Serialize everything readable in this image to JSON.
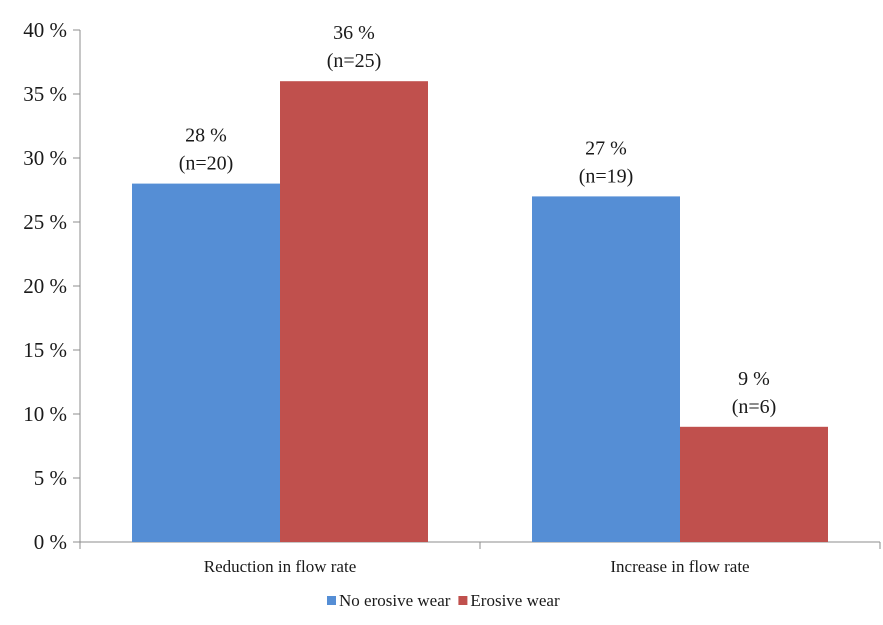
{
  "chart_data": {
    "type": "bar",
    "title": "",
    "xlabel": "",
    "ylabel": "",
    "categories": [
      "Reduction in flow rate",
      "Increase in flow rate"
    ],
    "series": [
      {
        "name": "No erosive wear",
        "color": "#558ed5",
        "values": [
          28,
          27
        ],
        "labels": [
          [
            "28 %",
            "(n=20)"
          ],
          [
            "27 %",
            "(n=19)"
          ]
        ]
      },
      {
        "name": "Erosive wear",
        "color": "#c0504d",
        "values": [
          36,
          9
        ],
        "labels": [
          [
            "36 %",
            "(n=25)"
          ],
          [
            "9 %",
            "(n=6)"
          ]
        ]
      }
    ],
    "ylim": [
      0,
      40
    ],
    "yticks": [
      0,
      5,
      10,
      15,
      20,
      25,
      30,
      35,
      40
    ],
    "ytick_labels": [
      "0 %",
      "5 %",
      "10 %",
      "15 %",
      "20 %",
      "25 %",
      "30 %",
      "35 %",
      "40 %"
    ],
    "grid": false,
    "legend_position": "bottom"
  }
}
